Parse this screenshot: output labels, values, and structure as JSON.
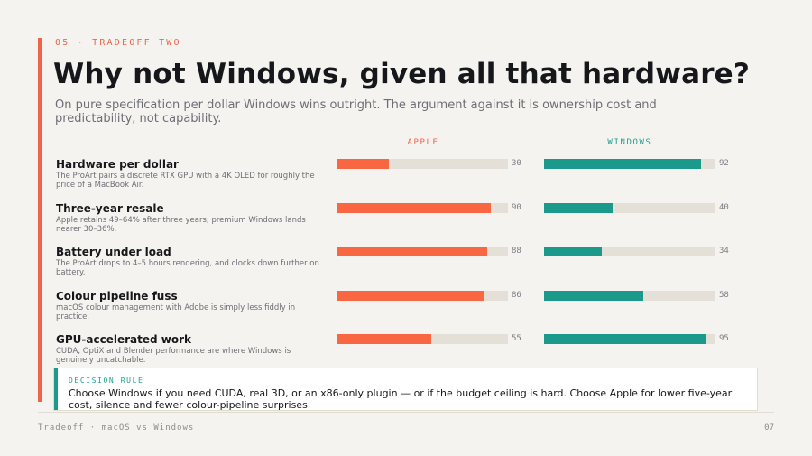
{
  "slide": {
    "eyebrow": "05 · TRADEOFF TWO",
    "title": "Why not Windows, given all that hardware?",
    "subtitle": "On pure specification per dollar Windows wins outright. The argument against it is ownership cost and predictability, not capability."
  },
  "columns": {
    "apple": "APPLE",
    "windows": "WINDOWS"
  },
  "rows": [
    {
      "title": "Hardware per dollar",
      "description": "The ProArt pairs a discrete RTX GPU with a 4K OLED for roughly the price of a MacBook Air.",
      "apple": 30,
      "windows": 92
    },
    {
      "title": "Three-year resale",
      "description": "Apple retains 49–64% after three years; premium Windows lands nearer 30–36%.",
      "apple": 90,
      "windows": 40
    },
    {
      "title": "Battery under load",
      "description": "The ProArt drops to 4–5 hours rendering, and clocks down further on battery.",
      "apple": 88,
      "windows": 34
    },
    {
      "title": "Colour pipeline fuss",
      "description": "macOS colour management with Adobe is simply less fiddly in practice.",
      "apple": 86,
      "windows": 58
    },
    {
      "title": "GPU-accelerated work",
      "description": "CUDA, OptiX and Blender performance are where Windows is genuinely uncatchable.",
      "apple": 55,
      "windows": 95
    }
  ],
  "decision": {
    "label": "DECISION RULE",
    "text": "Choose Windows if you need CUDA, real 3D, or an x86-only plugin — or if the budget ceiling is hard. Choose Apple for lower five-year cost, silence and fewer colour-pipeline surprises."
  },
  "footer": {
    "left": "Tradeoff · macOS vs Windows",
    "page": "07"
  },
  "colors": {
    "apple_accent": "#f86642",
    "windows_accent": "#1b9a8c",
    "track": "#e5e0d7",
    "background": "#f5f3ef"
  }
}
